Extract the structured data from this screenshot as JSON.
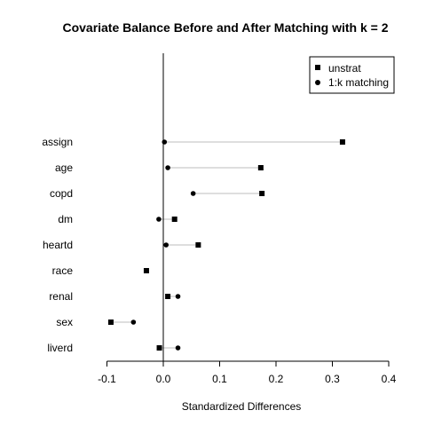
{
  "chart_data": {
    "type": "scatter",
    "title": "Covariate Balance Before and After Matching with k = 2",
    "xlabel": "Standardized Differences",
    "ylabel": "",
    "xlim": [
      -0.13,
      0.4
    ],
    "x_ticks": [
      -0.1,
      0.0,
      0.1,
      0.2,
      0.3,
      0.4
    ],
    "x_tick_labels": [
      "-0.1",
      "0.0",
      "0.1",
      "0.2",
      "0.3",
      "0.4"
    ],
    "categories": [
      "assign",
      "age",
      "copd",
      "dm",
      "heartd",
      "race",
      "renal",
      "sex",
      "liverd"
    ],
    "series": [
      {
        "name": "unstrat",
        "marker": "square",
        "values": [
          0.318,
          0.173,
          0.175,
          0.02,
          0.062,
          -0.03,
          0.008,
          -0.093,
          -0.007
        ]
      },
      {
        "name": "1:k matching",
        "marker": "circle",
        "values": [
          0.002,
          0.008,
          0.053,
          -0.008,
          0.005,
          -0.03,
          0.026,
          -0.053,
          0.026
        ]
      }
    ],
    "reference_line_x": 0,
    "legend_position": "top-right",
    "connector_color": "#bebebe",
    "marker_color": "#000000"
  }
}
